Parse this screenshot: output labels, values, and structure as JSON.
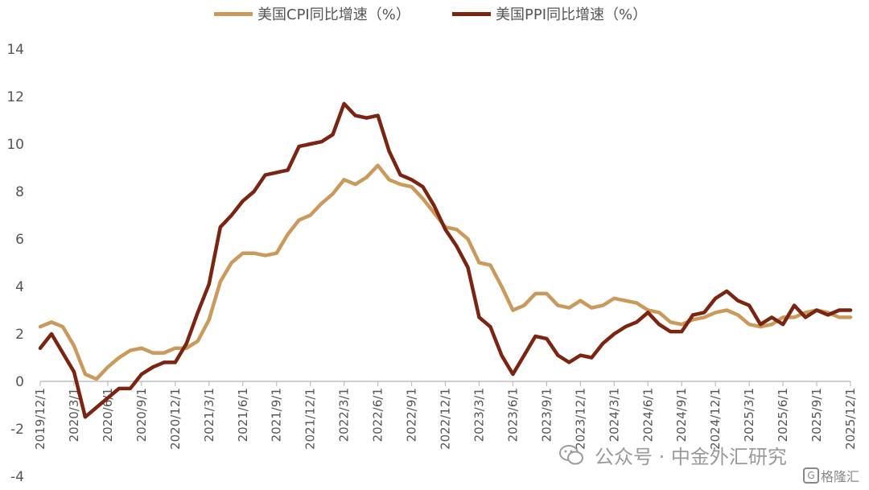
{
  "legend": {
    "cpi_label": "美国CPI同比增速（%）",
    "ppi_label": "美国PPI同比增速（%）"
  },
  "watermark": {
    "text": "公众号 · 中金外汇研究",
    "logo_text": "格隆汇",
    "logo_mark": "G"
  },
  "colors": {
    "cpi": "#C99A5B",
    "ppi": "#7B2411",
    "axis": "#BFBFBF",
    "tick_text": "#555555"
  },
  "chart_data": {
    "type": "line",
    "title": "",
    "xlabel": "",
    "ylabel": "",
    "ylim": [
      -4,
      14
    ],
    "yticks": [
      -4,
      -2,
      0,
      2,
      4,
      6,
      8,
      10,
      12,
      14
    ],
    "grid": false,
    "legend_position": "top",
    "x_tick_labels": [
      "2019/12/1",
      "2020/3/1",
      "2020/6/1",
      "2020/9/1",
      "2020/12/1",
      "2021/3/1",
      "2021/6/1",
      "2021/9/1",
      "2021/12/1",
      "2022/3/1",
      "2022/6/1",
      "2022/9/1",
      "2022/12/1",
      "2023/3/1",
      "2023/6/1",
      "2023/9/1",
      "2023/12/1",
      "2024/3/1",
      "2024/6/1",
      "2024/9/1",
      "2024/12/1",
      "2025/3/1",
      "2025/6/1",
      "2025/9/1",
      "2025/12/1"
    ],
    "x_start": "2019/12",
    "x_end": "2025/12",
    "series": [
      {
        "name": "美国CPI同比增速（%）",
        "values": [
          2.3,
          2.5,
          2.3,
          1.5,
          0.3,
          0.1,
          0.6,
          1.0,
          1.3,
          1.4,
          1.2,
          1.2,
          1.4,
          1.4,
          1.7,
          2.6,
          4.2,
          5.0,
          5.4,
          5.4,
          5.3,
          5.4,
          6.2,
          6.8,
          7.0,
          7.5,
          7.9,
          8.5,
          8.3,
          8.6,
          9.1,
          8.5,
          8.3,
          8.2,
          7.7,
          7.1,
          6.5,
          6.4,
          6.0,
          5.0,
          4.9,
          4.0,
          3.0,
          3.2,
          3.7,
          3.7,
          3.2,
          3.1,
          3.4,
          3.1,
          3.2,
          3.5,
          3.4,
          3.3,
          3.0,
          2.9,
          2.5,
          2.4,
          2.6,
          2.7,
          2.9,
          3.0,
          2.8,
          2.4,
          2.3,
          2.4,
          2.7,
          2.7,
          2.9,
          3.0,
          2.9,
          2.7,
          2.7
        ]
      },
      {
        "name": "美国PPI同比增速（%）",
        "values": [
          1.4,
          2.0,
          1.2,
          0.4,
          -1.5,
          -1.1,
          -0.7,
          -0.3,
          -0.3,
          0.3,
          0.6,
          0.8,
          0.8,
          1.6,
          2.9,
          4.1,
          6.5,
          7.0,
          7.6,
          8.0,
          8.7,
          8.8,
          8.9,
          9.9,
          10.0,
          10.1,
          10.4,
          11.7,
          11.2,
          11.1,
          11.2,
          9.7,
          8.7,
          8.5,
          8.2,
          7.4,
          6.4,
          5.7,
          4.8,
          2.7,
          2.3,
          1.1,
          0.3,
          1.1,
          1.9,
          1.8,
          1.1,
          0.8,
          1.1,
          1.0,
          1.6,
          2.0,
          2.3,
          2.5,
          2.9,
          2.4,
          2.1,
          2.1,
          2.8,
          2.9,
          3.5,
          3.8,
          3.4,
          3.2,
          2.4,
          2.7,
          2.4,
          3.2,
          2.7,
          3.0,
          2.8,
          3.0,
          3.0
        ]
      }
    ]
  }
}
